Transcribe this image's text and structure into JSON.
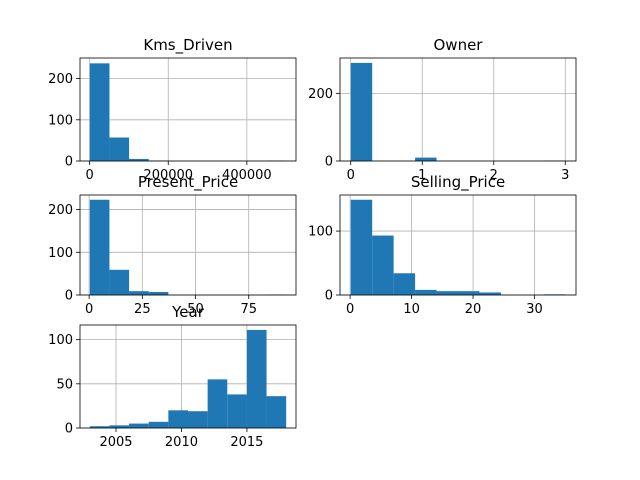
{
  "chart_data": [
    {
      "type": "histogram",
      "title": "Kms_Driven",
      "bin_range": [
        500,
        500000
      ],
      "bin_counts": [
        237,
        57,
        5,
        1,
        0,
        0,
        0,
        0,
        0,
        1
      ],
      "xlim": [
        -24475,
        524975
      ],
      "ylim": [
        0,
        250
      ],
      "xticks": [
        0,
        200000,
        400000
      ],
      "xtick_labels": [
        "0",
        "200000",
        "400000"
      ],
      "yticks": [
        0,
        100,
        200
      ],
      "ytick_labels": [
        "0",
        "100",
        "200"
      ],
      "grid": true
    },
    {
      "type": "histogram",
      "title": "Owner",
      "bin_range": [
        0,
        3
      ],
      "bin_counts": [
        290,
        0,
        0,
        10,
        0,
        0,
        0,
        0,
        0,
        1
      ],
      "xlim": [
        -0.15,
        3.15
      ],
      "ylim": [
        0,
        304.5
      ],
      "xticks": [
        0,
        1,
        2,
        3
      ],
      "xtick_labels": [
        "0",
        "1",
        "2",
        "3"
      ],
      "yticks": [
        0,
        200
      ],
      "ytick_labels": [
        "0",
        "200"
      ],
      "grid": true
    },
    {
      "type": "histogram",
      "title": "Present_Price",
      "bin_range": [
        0.32,
        92.6
      ],
      "bin_counts": [
        223,
        59,
        9,
        7,
        0,
        0,
        0,
        0,
        0,
        1
      ],
      "xlim": [
        -4.29,
        97.21
      ],
      "ylim": [
        0,
        234.15
      ],
      "xticks": [
        0,
        25,
        50,
        75
      ],
      "xtick_labels": [
        "0",
        "25",
        "50",
        "75"
      ],
      "yticks": [
        0,
        100,
        200
      ],
      "ytick_labels": [
        "0",
        "100",
        "200"
      ],
      "grid": true
    },
    {
      "type": "histogram",
      "title": "Selling_Price",
      "bin_range": [
        0.1,
        35
      ],
      "bin_counts": [
        149,
        93,
        34,
        8,
        6,
        6,
        4,
        0,
        0,
        1
      ],
      "xlim": [
        -1.645,
        36.745
      ],
      "ylim": [
        0,
        156.45
      ],
      "xticks": [
        0,
        10,
        20,
        30
      ],
      "xtick_labels": [
        "0",
        "10",
        "20",
        "30"
      ],
      "yticks": [
        0,
        100
      ],
      "ytick_labels": [
        "0",
        "100"
      ],
      "grid": true
    },
    {
      "type": "histogram",
      "title": "Year",
      "bin_range": [
        2003,
        2018
      ],
      "bin_counts": [
        2,
        3,
        5,
        7,
        20,
        19,
        55,
        38,
        111,
        36
      ],
      "xlim": [
        2002.25,
        2018.75
      ],
      "ylim": [
        0,
        116.55
      ],
      "xticks": [
        2005,
        2010,
        2015
      ],
      "xtick_labels": [
        "2005",
        "2010",
        "2015"
      ],
      "yticks": [
        0,
        50,
        100
      ],
      "ytick_labels": [
        "0",
        "50",
        "100"
      ],
      "grid": true
    }
  ],
  "colors": {
    "bar": "#1f77b4",
    "grid": "#b0b0b0",
    "axis": "#000000"
  }
}
